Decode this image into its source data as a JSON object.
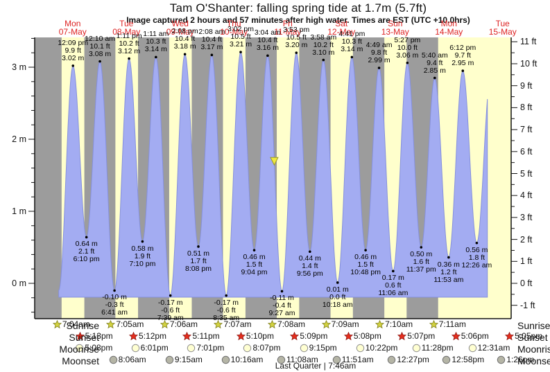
{
  "title": "Tam O'Shanter: falling  spring tide at 1.7m (5.7ft)",
  "subtitle": "Image captured 2 hours and 57 minutes after high water. Times are EST (UTC +10.0hrs)",
  "moon_phase": "Last Quarter | 7:46am",
  "colors": {
    "day_band": "#ffffcc",
    "night_band": "#9c9c9c",
    "tide_fill": "#a3acf2",
    "tide_edge": "#8590dd",
    "date_label": "#dd2222",
    "marker_fill": "#efe93f",
    "marker_edge": "#99992a",
    "sunrise_star": "#d2d240",
    "sunrise_star_edge": "#7e7e20",
    "sunset_star": "#e62e1d",
    "sunset_star_edge": "#8c1410",
    "moonrise_circle": "#ffffd2",
    "moonrise_circle_edge": "#8f8f8f",
    "moonset_circle": "#b5b5a6",
    "moonset_circle_edge": "#6f6f6f",
    "axis": "#111111"
  },
  "chart_data": {
    "type": "area",
    "title": "Tam O'Shanter: falling  spring tide at 1.7m (5.7ft)",
    "x_axis_days": [
      {
        "name": "Mon",
        "date": "07-May"
      },
      {
        "name": "Tue",
        "date": "08-May"
      },
      {
        "name": "Wed",
        "date": "09-May"
      },
      {
        "name": "Thu",
        "date": "10-May"
      },
      {
        "name": "Fri",
        "date": "11-May"
      },
      {
        "name": "Sat",
        "date": "12-May"
      },
      {
        "name": "Sun",
        "date": "13-May"
      },
      {
        "name": "Mon",
        "date": "14-May"
      },
      {
        "name": "Tue",
        "date": "15-May"
      }
    ],
    "y_axis_left": {
      "unit": "m",
      "major_ticks": [
        0,
        1,
        2,
        3
      ],
      "minor_step": 0.2
    },
    "y_axis_right": {
      "unit": "ft",
      "major_ticks": [
        -1,
        0,
        1,
        2,
        3,
        4,
        5,
        6,
        7,
        8,
        9,
        10,
        11
      ],
      "minor_step": 0.5
    },
    "tide_events": [
      {
        "kind": "low",
        "day": -1,
        "hours": 16.8,
        "height_m": 0.7,
        "annotated": false
      },
      {
        "kind": "high",
        "day": -1,
        "hours": 23.1,
        "height_m": 2.95,
        "annotated": false
      },
      {
        "kind": "low",
        "day": 0,
        "hours": 5.78,
        "height_m": -0.1,
        "annotated": false
      },
      {
        "kind": "high",
        "day": 0,
        "hours": 12.15,
        "height_m": 3.02,
        "annotated": true,
        "labels": [
          "12:09 pm",
          "9.9 ft",
          "3.02 m"
        ]
      },
      {
        "kind": "low",
        "day": 0,
        "hours": 18.167,
        "height_m": 0.64,
        "annotated": true,
        "labels": [
          "0.64 m",
          "2.1 ft",
          "6:10 pm"
        ]
      },
      {
        "kind": "high",
        "day": 1,
        "hours": 0.167,
        "height_m": 3.08,
        "annotated": true,
        "labels": [
          "12:10 am",
          "10.1 ft",
          "3.08 m"
        ]
      },
      {
        "kind": "low",
        "day": 1,
        "hours": 6.683,
        "height_m": -0.1,
        "annotated": true,
        "labels": [
          "-0.10 m",
          "-0.3 ft",
          "6:41 am"
        ]
      },
      {
        "kind": "high",
        "day": 1,
        "hours": 13.183,
        "height_m": 3.12,
        "annotated": true,
        "labels": [
          "1:11 pm",
          "10.2 ft",
          "3.12 m"
        ]
      },
      {
        "kind": "low",
        "day": 1,
        "hours": 19.167,
        "height_m": 0.58,
        "annotated": true,
        "labels": [
          "0.58 m",
          "1.9 ft",
          "7:10 pm"
        ]
      },
      {
        "kind": "high",
        "day": 2,
        "hours": 1.183,
        "height_m": 3.14,
        "annotated": true,
        "labels": [
          "1:11 am",
          "10.3 ft",
          "3.14 m"
        ]
      },
      {
        "kind": "low",
        "day": 2,
        "hours": 7.65,
        "height_m": -0.17,
        "annotated": true,
        "labels": [
          "-0.17 m",
          "-0.6 ft",
          "7:39 am"
        ]
      },
      {
        "kind": "high",
        "day": 2,
        "hours": 14.133,
        "height_m": 3.18,
        "annotated": true,
        "labels": [
          "2:08 pm",
          "10.4 ft",
          "3.18 m"
        ]
      },
      {
        "kind": "low",
        "day": 2,
        "hours": 20.133,
        "height_m": 0.51,
        "annotated": true,
        "labels": [
          "0.51 m",
          "1.7 ft",
          "8:08 pm"
        ]
      },
      {
        "kind": "high",
        "day": 3,
        "hours": 2.133,
        "height_m": 3.17,
        "annotated": true,
        "labels": [
          "2:08 am",
          "10.4 ft",
          "3.17 m"
        ]
      },
      {
        "kind": "low",
        "day": 3,
        "hours": 8.583,
        "height_m": -0.17,
        "annotated": true,
        "labels": [
          "-0.17 m",
          "-0.6 ft",
          "8:35 am"
        ]
      },
      {
        "kind": "high",
        "day": 3,
        "hours": 15.033,
        "height_m": 3.21,
        "annotated": true,
        "labels": [
          "3:02 pm",
          "10.5 ft",
          "3.21 m"
        ]
      },
      {
        "kind": "low",
        "day": 3,
        "hours": 21.067,
        "height_m": 0.46,
        "annotated": true,
        "labels": [
          "0.46 m",
          "1.5 ft",
          "9:04 pm"
        ]
      },
      {
        "kind": "high",
        "day": 4,
        "hours": 3.067,
        "height_m": 3.16,
        "annotated": true,
        "labels": [
          "3:04 am",
          "10.4 ft",
          "3.16 m"
        ]
      },
      {
        "kind": "low",
        "day": 4,
        "hours": 9.45,
        "height_m": -0.11,
        "annotated": true,
        "labels": [
          "-0.11 m",
          "-0.4 ft",
          "9:27 am"
        ]
      },
      {
        "kind": "high",
        "day": 4,
        "hours": 15.883,
        "height_m": 3.2,
        "annotated": true,
        "labels": [
          "3:53 pm",
          "10.5 ft",
          "3.20 m"
        ]
      },
      {
        "kind": "low",
        "day": 4,
        "hours": 21.933,
        "height_m": 0.44,
        "annotated": true,
        "labels": [
          "0.44 m",
          "1.4 ft",
          "9:56 pm"
        ]
      },
      {
        "kind": "high",
        "day": 5,
        "hours": 3.967,
        "height_m": 3.1,
        "annotated": true,
        "labels": [
          "3:58 am",
          "10.2 ft",
          "3.10 m"
        ]
      },
      {
        "kind": "low",
        "day": 5,
        "hours": 10.3,
        "height_m": 0.01,
        "annotated": true,
        "labels": [
          "0.01 m",
          "0.0 ft",
          "10:18 am"
        ]
      },
      {
        "kind": "high",
        "day": 5,
        "hours": 16.683,
        "height_m": 3.14,
        "annotated": true,
        "labels": [
          "4:41 pm",
          "10.3 ft",
          "3.14 m"
        ]
      },
      {
        "kind": "low",
        "day": 5,
        "hours": 22.8,
        "height_m": 0.46,
        "annotated": true,
        "labels": [
          "0.46 m",
          "1.5 ft",
          "10:48 pm"
        ]
      },
      {
        "kind": "high",
        "day": 6,
        "hours": 4.817,
        "height_m": 2.99,
        "annotated": true,
        "labels": [
          "4:49 am",
          "9.8 ft",
          "2.99 m"
        ]
      },
      {
        "kind": "low",
        "day": 6,
        "hours": 11.1,
        "height_m": 0.17,
        "annotated": true,
        "labels": [
          "0.17 m",
          "0.6 ft",
          "11:06 am"
        ]
      },
      {
        "kind": "high",
        "day": 6,
        "hours": 17.45,
        "height_m": 3.06,
        "annotated": true,
        "labels": [
          "5:27 pm",
          "10.0 ft",
          "3.06 m"
        ]
      },
      {
        "kind": "low",
        "day": 6,
        "hours": 23.617,
        "height_m": 0.5,
        "annotated": true,
        "labels": [
          "0.50 m",
          "1.6 ft",
          "11:37 pm"
        ]
      },
      {
        "kind": "high",
        "day": 7,
        "hours": 5.667,
        "height_m": 2.85,
        "annotated": true,
        "labels": [
          "5:40 am",
          "9.4 ft",
          "2.85 m"
        ]
      },
      {
        "kind": "low",
        "day": 7,
        "hours": 11.883,
        "height_m": 0.36,
        "annotated": true,
        "labels": [
          "0.36 m",
          "1.2 ft",
          "11:53 am"
        ]
      },
      {
        "kind": "high",
        "day": 7,
        "hours": 18.2,
        "height_m": 2.95,
        "annotated": true,
        "labels": [
          "6:12 pm",
          "9.7 ft",
          "2.95 m"
        ]
      },
      {
        "kind": "low",
        "day": 8,
        "hours": 0.433,
        "height_m": 0.56,
        "annotated": true,
        "labels": [
          "0.56 m",
          "1.8 ft",
          "12:26 am"
        ]
      },
      {
        "kind": "high",
        "day": 8,
        "hours": 6.75,
        "height_m": 2.9,
        "annotated": false
      }
    ],
    "current_marker": {
      "day": 4,
      "hours": 6.02,
      "level_m": 1.7,
      "note": "falling tide at 1.7m"
    }
  },
  "astro": {
    "rows": [
      {
        "label": "Sunrise",
        "icon": "star-yellow",
        "entries": [
          {
            "day": 0,
            "hours": 7.067,
            "time": "7:04am"
          },
          {
            "day": 1,
            "hours": 7.083,
            "time": "7:05am"
          },
          {
            "day": 2,
            "hours": 7.1,
            "time": "7:06am"
          },
          {
            "day": 3,
            "hours": 7.117,
            "time": "7:07am"
          },
          {
            "day": 4,
            "hours": 7.133,
            "time": "7:08am"
          },
          {
            "day": 5,
            "hours": 7.15,
            "time": "7:09am"
          },
          {
            "day": 6,
            "hours": 7.167,
            "time": "7:10am"
          },
          {
            "day": 7,
            "hours": 7.183,
            "time": "7:11am"
          }
        ]
      },
      {
        "label": "Sunset",
        "icon": "star-red",
        "entries": [
          {
            "day": 0,
            "hours": 17.217,
            "time": "5:13pm"
          },
          {
            "day": 1,
            "hours": 17.2,
            "time": "5:12pm"
          },
          {
            "day": 2,
            "hours": 17.183,
            "time": "5:11pm"
          },
          {
            "day": 3,
            "hours": 17.167,
            "time": "5:10pm"
          },
          {
            "day": 4,
            "hours": 17.15,
            "time": "5:09pm"
          },
          {
            "day": 5,
            "hours": 17.133,
            "time": "5:08pm"
          },
          {
            "day": 6,
            "hours": 17.117,
            "time": "5:07pm"
          },
          {
            "day": 7,
            "hours": 17.1,
            "time": "5:06pm"
          },
          {
            "day": 8,
            "hours": 17.083,
            "time": "5:05pm"
          }
        ]
      },
      {
        "label": "Moonrise",
        "icon": "circle-light",
        "entries": [
          {
            "day": 0,
            "hours": 17.133,
            "time": "5:08pm"
          },
          {
            "day": 1,
            "hours": 18.017,
            "time": "6:01pm"
          },
          {
            "day": 2,
            "hours": 19.017,
            "time": "7:01pm"
          },
          {
            "day": 3,
            "hours": 20.117,
            "time": "8:07pm"
          },
          {
            "day": 4,
            "hours": 21.25,
            "time": "9:15pm"
          },
          {
            "day": 5,
            "hours": 22.367,
            "time": "10:22pm"
          },
          {
            "day": 6,
            "hours": 23.467,
            "time": "11:28pm"
          },
          {
            "day": 7,
            "hours": 24.517,
            "time": "12:31am"
          }
        ]
      },
      {
        "label": "Moonset",
        "icon": "circle-gray",
        "entries": [
          {
            "day": 1,
            "hours": 8.1,
            "time": "8:06am"
          },
          {
            "day": 2,
            "hours": 9.25,
            "time": "9:15am"
          },
          {
            "day": 3,
            "hours": 10.267,
            "time": "10:16am"
          },
          {
            "day": 4,
            "hours": 11.133,
            "time": "11:08am"
          },
          {
            "day": 5,
            "hours": 11.85,
            "time": "11:51am"
          },
          {
            "day": 6,
            "hours": 12.45,
            "time": "12:27pm"
          },
          {
            "day": 7,
            "hours": 12.967,
            "time": "12:58pm"
          },
          {
            "day": 8,
            "hours": 13.433,
            "time": "1:26pm"
          }
        ]
      }
    ]
  }
}
